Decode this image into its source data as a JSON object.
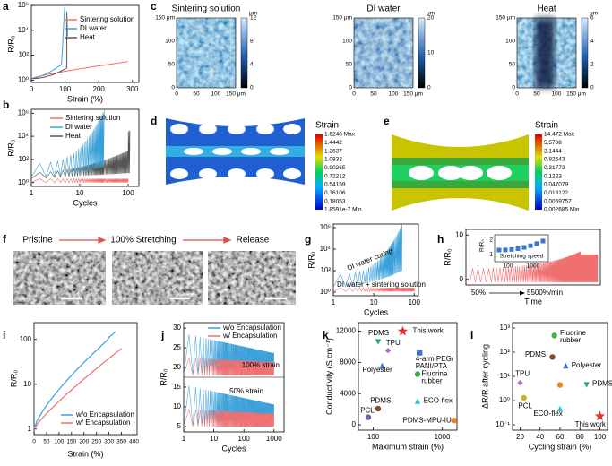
{
  "panel_labels": [
    "a",
    "b",
    "c",
    "d",
    "e",
    "f",
    "g",
    "h",
    "i",
    "j",
    "k",
    "l"
  ],
  "a": {
    "xlabel": "Strain (%)",
    "ylabel": "R/R₀",
    "xticks": [
      "0",
      "100",
      "200",
      "300"
    ],
    "yticks": [
      "10⁰",
      "10²",
      "10⁴",
      "10⁶"
    ],
    "legend": [
      "Sintering solution",
      "DI water",
      "Heat"
    ]
  },
  "b": {
    "xlabel": "Cycles",
    "ylabel": "R/R₀",
    "xticks": [
      "1",
      "10",
      "100"
    ],
    "yticks": [
      "10⁰",
      "10²",
      "10⁴",
      "10⁶"
    ],
    "legend": [
      "Sintering solution",
      "DI water",
      "Heat"
    ]
  },
  "c": {
    "maps": [
      {
        "title": "Sintering solution",
        "xticks": [
          "0",
          "50",
          "100",
          "150 μm"
        ],
        "yticks": [
          "0",
          "50",
          "100",
          "150 μm"
        ],
        "colorbar_unit": "μm",
        "colorbar_ticks": [
          "0",
          "4",
          "8",
          "12"
        ]
      },
      {
        "title": "DI water",
        "xticks": [
          "0",
          "50",
          "100",
          "150 μm"
        ],
        "yticks": [
          "0",
          "50",
          "100",
          "150 μm"
        ],
        "colorbar_unit": "μm",
        "colorbar_ticks": [
          "0",
          "10",
          "20"
        ]
      },
      {
        "title": "Heat",
        "xticks": [
          "0",
          "50",
          "100",
          "150 μm"
        ],
        "yticks": [
          "0",
          "50",
          "100",
          "150 μm"
        ],
        "colorbar_unit": "μm",
        "colorbar_ticks": [
          "0",
          "2",
          "4",
          "6"
        ]
      }
    ]
  },
  "d": {
    "title": "Strain",
    "levels": [
      "1.6248 Max",
      "1.4442",
      "1.2637",
      "1.0832",
      "0.90265",
      "0.72212",
      "0.54159",
      "0.36106",
      "0.18053",
      "1.8591e-7 Min"
    ]
  },
  "e": {
    "title": "Strain",
    "levels": [
      "14.472 Max",
      "5.5708",
      "2.1444",
      "0.82543",
      "0.31773",
      "0.1223",
      "0.047079",
      "0.018122",
      "0.0069757",
      "0.002685 Min"
    ]
  },
  "f": {
    "steps": [
      "Pristine",
      "100% Stretching",
      "Release"
    ]
  },
  "g": {
    "xlabel": "Cycles",
    "ylabel": "R/R₀",
    "xticks": [
      "1",
      "10",
      "100"
    ],
    "yticks": [
      "10⁰",
      "10²",
      "10⁴",
      "10⁶"
    ],
    "annotations": [
      "DI water curing",
      "DI water + sintering solution"
    ]
  },
  "h": {
    "xlabel": "Time",
    "ylabel": "R/R₀",
    "yticks": [
      "0",
      "10"
    ],
    "annotations": [
      "50%",
      "5500%/min"
    ],
    "inset": {
      "ylabel": "R/R₀",
      "xlabel": "Stretching speed",
      "xticks": [
        "100",
        "1000"
      ],
      "yticks": [
        "1",
        "2"
      ]
    }
  },
  "i": {
    "xlabel": "Strain (%)",
    "ylabel": "R/R₀",
    "xticks": [
      "0",
      "50",
      "100",
      "150",
      "200",
      "250",
      "300",
      "350",
      "400"
    ],
    "yticks": [
      "1",
      "10",
      "100"
    ],
    "legend": [
      "w/o Encapsulation",
      "w/ Encapsulation"
    ]
  },
  "j": {
    "xlabel": "Cycles",
    "ylabel": "R/R₀",
    "xticks": [
      "1",
      "10",
      "100",
      "1000"
    ],
    "yticks": [
      "5",
      "10",
      "15",
      "20",
      "25",
      "30"
    ],
    "legend": [
      "w/o Encapsulation",
      "w/ Encapsulation"
    ],
    "annotations": [
      "100% strain",
      "50% strain"
    ]
  },
  "k": {
    "xlabel": "Maximum strain (%)",
    "ylabel": "Conductivity (S cm⁻¹)",
    "xticks": [
      "100",
      "1000"
    ],
    "yticks": [
      "0",
      "4000",
      "8000",
      "12000"
    ],
    "points": [
      {
        "label": [
          "This work"
        ]
      },
      {
        "label": [
          "PDMS"
        ]
      },
      {
        "label": [
          "TPU"
        ]
      },
      {
        "label": [
          "4-arm PEG/",
          "PANI/PTA"
        ]
      },
      {
        "label": [
          "Polyester"
        ]
      },
      {
        "label": [
          "Fluorine",
          "rubber"
        ]
      },
      {
        "label": [
          "PDMS"
        ]
      },
      {
        "label": [
          "PCL"
        ]
      },
      {
        "label": [
          "ECO-flex"
        ]
      },
      {
        "label": [
          "PDMS-MPU-IU"
        ]
      }
    ]
  },
  "l": {
    "xlabel": "Cycling strain (%)",
    "ylabel": "ΔR/R after cycling",
    "xticks": [
      "20",
      "40",
      "60",
      "80",
      "100"
    ],
    "yticks": [
      "10⁻¹",
      "10⁰",
      "10¹",
      "10²",
      "10³"
    ],
    "points": [
      {
        "label": [
          "Fluorine",
          "rubber"
        ]
      },
      {
        "label": [
          "PDMS"
        ]
      },
      {
        "label": [
          "Polyester"
        ]
      },
      {
        "label": [
          "TPU"
        ]
      },
      {
        "label": [
          "PDMS"
        ]
      },
      {
        "label": [
          "PCL"
        ]
      },
      {
        "label": [
          "ECO-flex"
        ]
      },
      {
        "label": [
          "This work"
        ]
      }
    ]
  }
}
